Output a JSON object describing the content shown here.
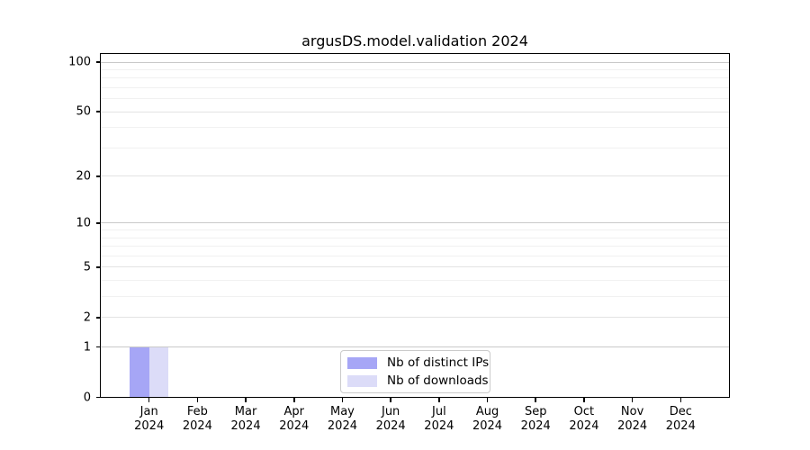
{
  "chart_data": {
    "type": "bar",
    "title": "argusDS.model.validation 2024",
    "categories": [
      "Jan",
      "Feb",
      "Mar",
      "Apr",
      "May",
      "Jun",
      "Jul",
      "Aug",
      "Sep",
      "Oct",
      "Nov",
      "Dec"
    ],
    "category_year": "2024",
    "series": [
      {
        "name": "Nb of distinct IPs",
        "color": "#a6a6f6",
        "values": [
          1,
          0,
          0,
          0,
          0,
          0,
          0,
          0,
          0,
          0,
          0,
          0
        ]
      },
      {
        "name": "Nb of downloads",
        "color": "#dcdcf8",
        "values": [
          1,
          0,
          0,
          0,
          0,
          0,
          0,
          0,
          0,
          0,
          0,
          0
        ]
      }
    ],
    "yscale": "log1p",
    "ylim": [
      0,
      112
    ],
    "yticks": [
      0,
      1,
      2,
      5,
      10,
      20,
      50,
      100
    ],
    "ytick_labels": [
      "0",
      "1",
      "2",
      "5",
      "10",
      "20",
      "50",
      "100"
    ],
    "gridlines": {
      "decade": [
        1,
        10,
        100
      ],
      "labeled": [
        2,
        5,
        20,
        50
      ],
      "minor": [
        3,
        4,
        6,
        7,
        8,
        9,
        30,
        40,
        60,
        70,
        80,
        90
      ]
    },
    "grid": "on",
    "legend_position": "lower center",
    "xlabel": "",
    "ylabel": "",
    "colors": {
      "axis": "#000000",
      "text": "#000000",
      "grid_decade": "#c9c9c9",
      "grid_labeled": "#e3e3e3",
      "grid_minor": "#f1f1f1",
      "legend_border": "#cbcbcb",
      "legend_bg": "#ffffff",
      "figure_bg": "#ffffff"
    }
  }
}
